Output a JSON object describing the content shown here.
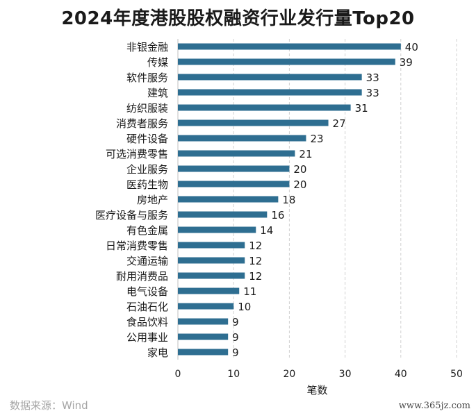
{
  "title": "2024年度港股股权融资行业发行量Top20",
  "source": "数据来源：Wind",
  "watermark_site": "www.365jz.com",
  "chart_data": {
    "type": "bar",
    "orientation": "horizontal",
    "categories": [
      "非银金融",
      "传媒",
      "软件服务",
      "建筑",
      "纺织服装",
      "消费者服务",
      "硬件设备",
      "可选消费零售",
      "企业服务",
      "医药生物",
      "房地产",
      "医疗设备与服务",
      "有色金属",
      "日常消费零售",
      "交通运输",
      "耐用消费品",
      "电气设备",
      "石油石化",
      "食品饮料",
      "公用事业",
      "家电"
    ],
    "values": [
      40,
      39,
      33,
      33,
      31,
      27,
      23,
      21,
      20,
      20,
      18,
      16,
      14,
      12,
      12,
      12,
      11,
      10,
      9,
      9,
      9
    ],
    "xlabel": "笔数",
    "xlim": [
      0,
      50
    ],
    "xticks": [
      0,
      10,
      20,
      30,
      40,
      50
    ],
    "grid": "vertical dashed",
    "bar_color": "#2e6e91",
    "data_labels": true
  }
}
